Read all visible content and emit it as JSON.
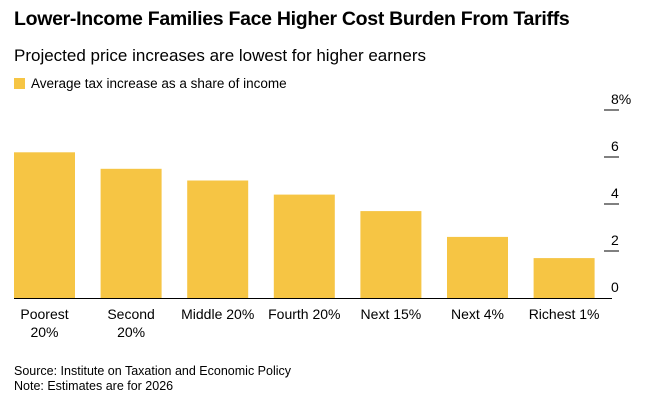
{
  "title": "Lower-Income Families Face Higher Cost Burden From Tariffs",
  "subtitle": "Projected price increases are lowest for higher earners",
  "source": "Source: Institute on Taxation and Economic Policy",
  "note": "Note: Estimates are for 2026",
  "colors": {
    "bar": "#f6c544",
    "axis": "#000000"
  },
  "chart_data": {
    "type": "bar",
    "categories": [
      [
        "Poorest",
        "20%"
      ],
      [
        "Second",
        "20%"
      ],
      [
        "Middle 20%"
      ],
      [
        "Fourth 20%"
      ],
      [
        "Next 15%"
      ],
      [
        "Next 4%"
      ],
      [
        "Richest 1%"
      ]
    ],
    "series": [
      {
        "name": "Average tax increase as a share of income",
        "values": [
          6.2,
          5.5,
          5.0,
          4.4,
          3.7,
          2.6,
          1.7
        ]
      }
    ],
    "yticks": [
      {
        "value": 0,
        "label": "0"
      },
      {
        "value": 2,
        "label": "2"
      },
      {
        "value": 4,
        "label": "4"
      },
      {
        "value": 6,
        "label": "6"
      },
      {
        "value": 8,
        "label": "8%"
      }
    ],
    "ylim": [
      0,
      8
    ],
    "legend_position": "top-left",
    "grid": false
  }
}
